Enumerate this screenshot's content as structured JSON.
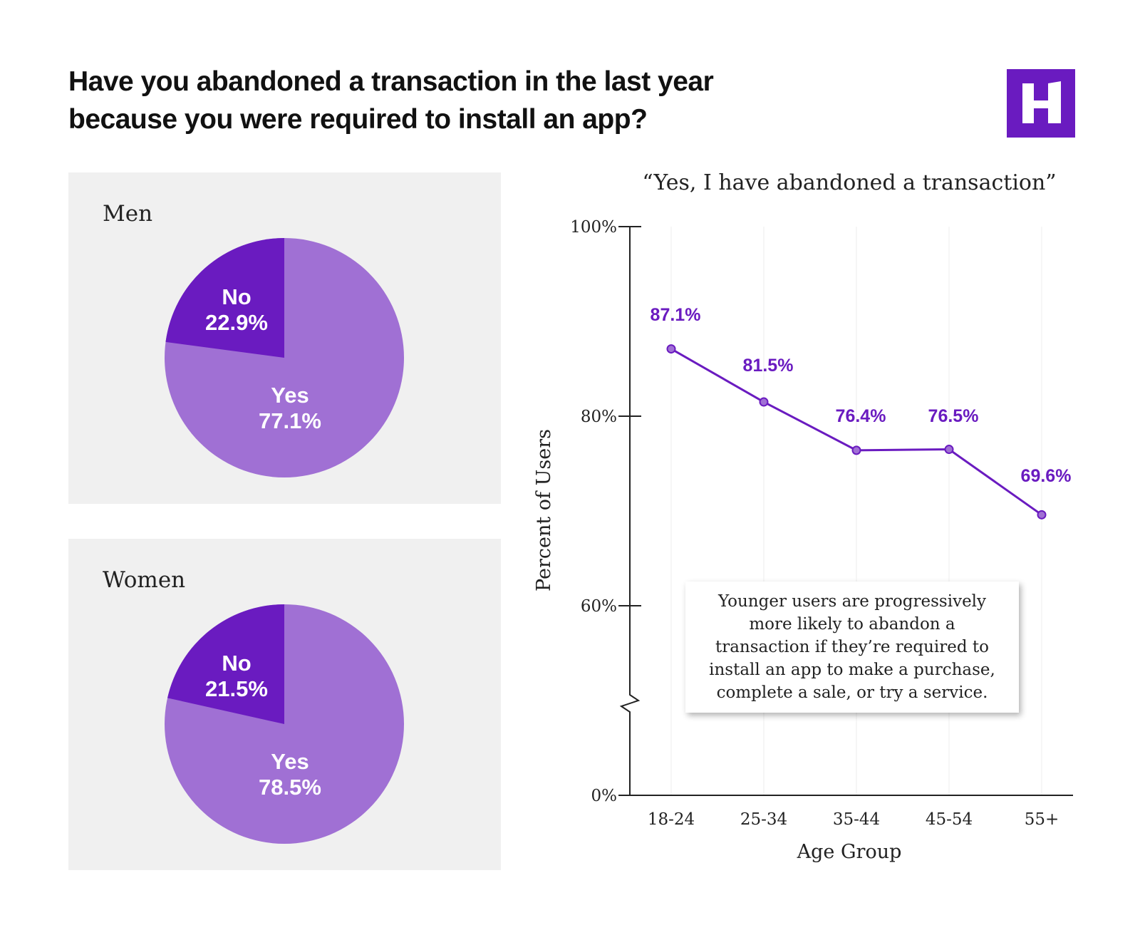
{
  "title": "Have you abandoned a transaction in the last year because you were required to install an app?",
  "colors": {
    "yes": "#a070d4",
    "no": "#6a1bc0",
    "line": "#6a1bc0",
    "panel": "#f0f0f0"
  },
  "logo_letter": "H",
  "chart_data": [
    {
      "type": "pie",
      "title": "Men",
      "slices": [
        {
          "label": "No",
          "value": 22.9,
          "display": "22.9%"
        },
        {
          "label": "Yes",
          "value": 77.1,
          "display": "77.1%"
        }
      ]
    },
    {
      "type": "pie",
      "title": "Women",
      "slices": [
        {
          "label": "No",
          "value": 21.5,
          "display": "21.5%"
        },
        {
          "label": "Yes",
          "value": 78.5,
          "display": "78.5%"
        }
      ]
    },
    {
      "type": "line",
      "title": "“Yes, I have abandoned a transaction”",
      "xlabel": "Age Group",
      "ylabel": "Percent of Users",
      "categories": [
        "18-24",
        "25-34",
        "35-44",
        "45-54",
        "55+"
      ],
      "values": [
        87.1,
        81.5,
        76.4,
        76.5,
        69.6
      ],
      "labels": [
        "87.1%",
        "81.5%",
        "76.4%",
        "76.5%",
        "69.6%"
      ],
      "yticks": [
        {
          "value": 100,
          "label": "100%"
        },
        {
          "value": 80,
          "label": "80%"
        },
        {
          "value": 60,
          "label": "60%"
        },
        {
          "value": 0,
          "label": "0%"
        }
      ],
      "ylim": [
        0,
        100
      ],
      "axis_break": true,
      "annotation": "Younger users are progressively more likely to abandon a transaction if they’re required to install an app to make a purchase, complete a sale, or try a service."
    }
  ]
}
